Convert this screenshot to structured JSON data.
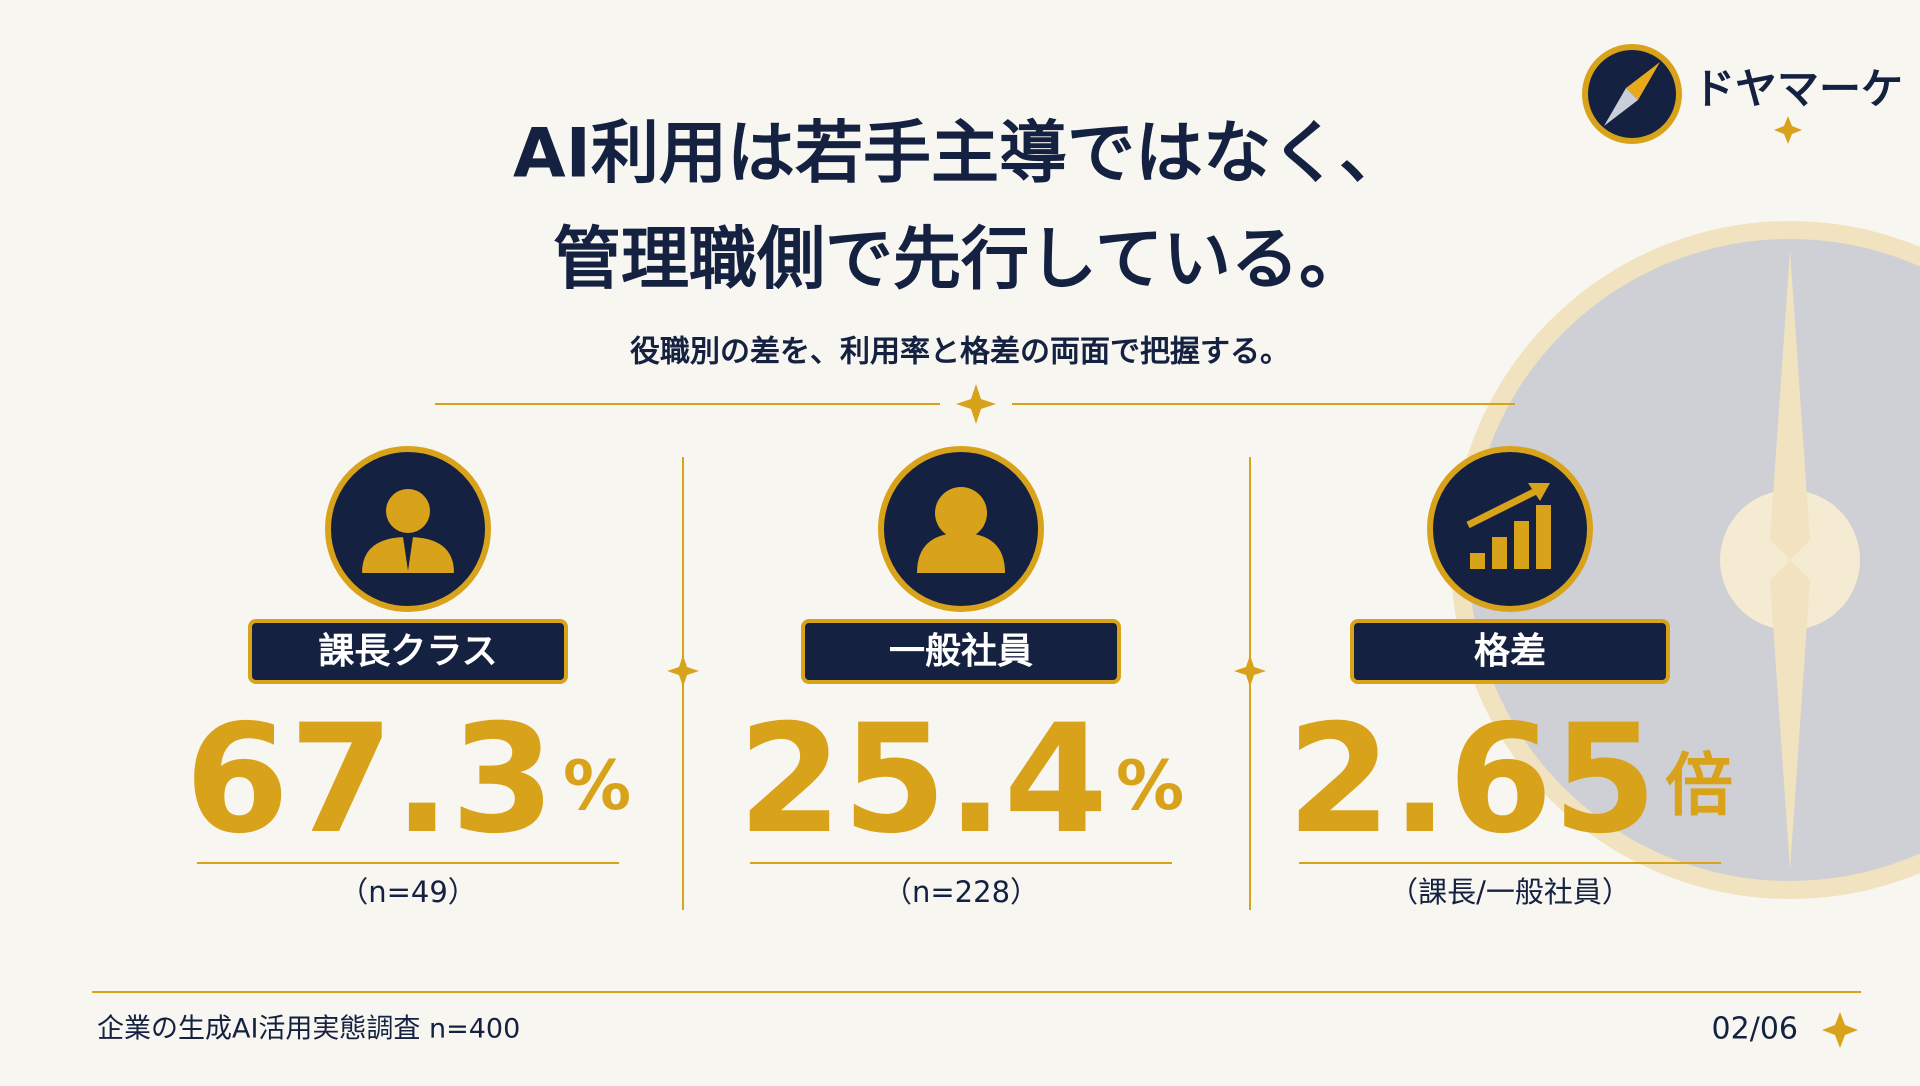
{
  "logo": {
    "text": "ドヤマーケ"
  },
  "header": {
    "title_lines": [
      "AI利用は若手主導ではなく、",
      "管理職側で先行している。"
    ],
    "subtitle": "役職別の差を、利用率と格差の両面で把握する。"
  },
  "cards": [
    {
      "label": "課長クラス",
      "value": 67.3,
      "unit": "%",
      "note": "（n=49）"
    },
    {
      "label": "一般社員",
      "value": 25.4,
      "unit": "%",
      "note": "（n=228）"
    },
    {
      "label": "格差",
      "value": 2.65,
      "unit": "倍",
      "note": "（課長/一般社員）"
    }
  ],
  "footer": {
    "source": "企業の生成AI活用実態調査 n=400",
    "page": "02/06"
  }
}
